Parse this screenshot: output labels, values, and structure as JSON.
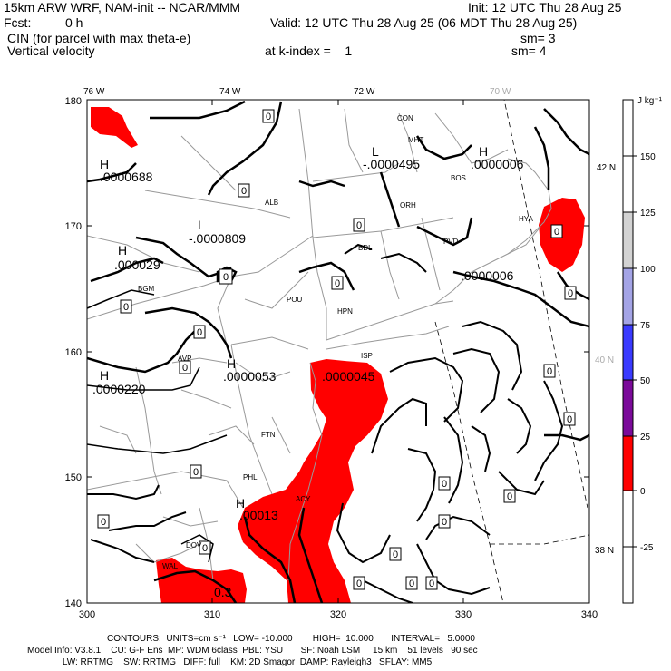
{
  "header": {
    "model": "15km ARW WRF, NAM-init -- NCAR/MMM",
    "init": "Init: 12 UTC Thu 28 Aug 25",
    "fcst_label": "Fcst:",
    "fcst_value": "0 h",
    "valid": "Valid: 12 UTC Thu 28 Aug 25 (06 MDT Thu 28 Aug 25)",
    "field1": "CIN (for parcel with max theta-e)",
    "sm1": "sm= 3",
    "field2": "Vertical velocity",
    "kindex": "at k-index =    1",
    "sm2": "sm= 4"
  },
  "map": {
    "lon_labels": [
      "76 W",
      "74 W",
      "72 W",
      "70 W"
    ],
    "lat_labels": [
      "42 N",
      "40 N",
      "38 N"
    ],
    "x_ticks": [
      "300",
      "310",
      "320",
      "330",
      "340"
    ],
    "y_ticks": [
      "140",
      "150",
      "160",
      "170",
      "180"
    ],
    "cities": [
      "CON",
      "MHT",
      "BOS",
      "ALB",
      "ORH",
      "BDL",
      "PVD",
      "HYA",
      "BGM",
      "POU",
      "HPN",
      "ISP",
      "AVP",
      "FTN",
      "PHL",
      "ACY",
      "DOV",
      "WAL"
    ],
    "highs_lows": [
      {
        "sym": "H",
        "value": ".0000688"
      },
      {
        "sym": "L",
        "value": "-.0000495"
      },
      {
        "sym": "H",
        "value": ".0000006"
      },
      {
        "sym": "L",
        "value": "-.0000809"
      },
      {
        "sym": "H",
        "value": ".000029"
      },
      {
        "sym": "",
        "value": ".0000006"
      },
      {
        "sym": "H",
        "value": ".0000220"
      },
      {
        "sym": "H",
        "value": ".0000053"
      },
      {
        "sym": "",
        "value": ".0000045"
      },
      {
        "sym": "H",
        "value": ".00013"
      },
      {
        "sym": "",
        "value": "0.3"
      }
    ],
    "contour_label": "0",
    "colors": {
      "cin_fill": "#ff0000",
      "contour": "#000000",
      "borders": "#999999"
    }
  },
  "colorbar": {
    "unit": "J kg⁻¹",
    "labels": [
      "150",
      "125",
      "100",
      "75",
      "50",
      "25",
      "0",
      "-25"
    ],
    "colors": [
      "#ffffff",
      "#ffffff",
      "#d3d3d3",
      "#a4a4e6",
      "#3a3aff",
      "#7b0a9a",
      "#ff0000",
      "#ffffff",
      "#ffffff"
    ]
  },
  "footer": {
    "line1": "CONTOURS:  UNITS=cm s⁻¹   LOW= -10.000        HIGH=  10.000       INTERVAL=   5.0000",
    "line2": "Model Info: V3.8.1    CU: G-F Ens  MP: WDM 6class  PBL: YSU       SF: Noah LSM     15 km    51 levels   90 sec",
    "line3": "              LW: RRTMG    SW: RRTMG   DIFF: full    KM: 2D Smagor  DAMP: Rayleigh3   SFLAY: MM5"
  }
}
